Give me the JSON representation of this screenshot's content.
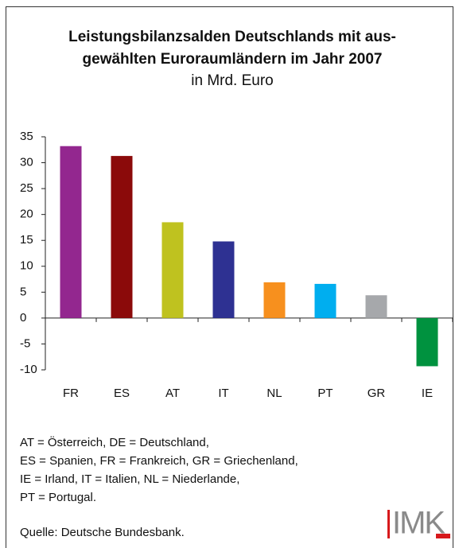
{
  "chart_data": {
    "type": "bar",
    "title": [
      "Leistungsbilanzsalden Deutschlands mit aus-",
      "gewählten Euroraumländern im Jahr 2007"
    ],
    "subtitle": "in Mrd. Euro",
    "categories": [
      "FR",
      "ES",
      "AT",
      "IT",
      "NL",
      "PT",
      "GR",
      "IE"
    ],
    "values": [
      33.2,
      31.3,
      18.5,
      14.8,
      6.9,
      6.6,
      4.4,
      -9.3
    ],
    "colors": [
      "#93278f",
      "#8b0a0a",
      "#bfc21f",
      "#2e3192",
      "#f7901e",
      "#00aeef",
      "#a6a8ab",
      "#00923f"
    ],
    "ylim": [
      -10,
      35
    ],
    "yticks": [
      -10,
      -5,
      0,
      5,
      10,
      15,
      20,
      25,
      30,
      35
    ],
    "grid": false,
    "notes": [
      "AT = Österreich, DE = Deutschland,",
      "ES = Spanien, FR = Frankreich, GR = Griechenland,",
      "IE = Irland, IT = Italien, NL = Niederlande,",
      "PT = Portugal."
    ],
    "source": "Quelle: Deutsche Bundesbank.",
    "logo": "IMK"
  }
}
